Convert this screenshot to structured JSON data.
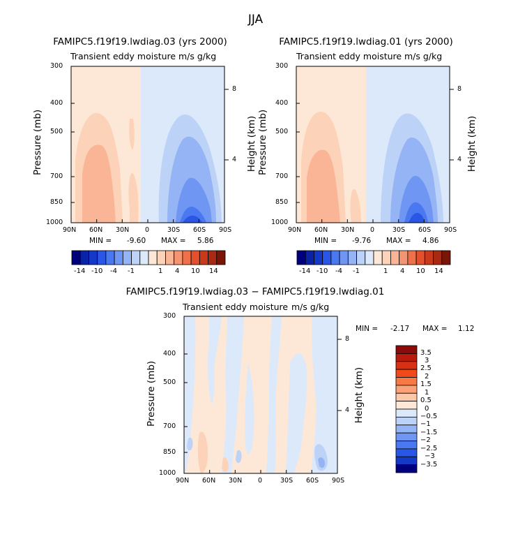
{
  "figure": {
    "title": "JJA"
  },
  "chart_data": [
    {
      "type": "heatmap",
      "title": "FAMIPC5.f19f19.lwdiag.03 (yrs 2000)",
      "subtitle": "Transient eddy moisture",
      "units": "m/s g/kg",
      "ylabel": "Pressure (mb)",
      "y2label": "Height (km)",
      "xticks": [
        "90N",
        "60N",
        "30N",
        "0",
        "30S",
        "60S",
        "90S"
      ],
      "yticks": [
        "300",
        "400",
        "500",
        "700",
        "850",
        "1000"
      ],
      "y2ticks": [
        "8",
        "4"
      ],
      "xlim": [
        90,
        -90
      ],
      "ylim": [
        1000,
        300
      ],
      "min_label": "MIN =",
      "min_value": "-9.60",
      "max_label": "MAX =",
      "max_value": "5.86",
      "colorbar": {
        "orientation": "horizontal",
        "labels": [
          "-14",
          "-10",
          "-4",
          "-1",
          "1",
          "4",
          "10",
          "14"
        ],
        "colors": [
          "#00007f",
          "#0a23a6",
          "#1439c8",
          "#2a56e6",
          "#4a78f0",
          "#6e96f2",
          "#95b4f5",
          "#bcd2f7",
          "#dce9fa",
          "#fde8d8",
          "#fcd2b8",
          "#f9b596",
          "#f59470",
          "#ef7049",
          "#e3502d",
          "#c9391c",
          "#a82a12",
          "#7a1608"
        ]
      }
    },
    {
      "type": "heatmap",
      "title": "FAMIPC5.f19f19.lwdiag.01 (yrs 2000)",
      "subtitle": "Transient eddy moisture",
      "units": "m/s g/kg",
      "ylabel": "Pressure (mb)",
      "y2label": "Height (km)",
      "xticks": [
        "90N",
        "60N",
        "30N",
        "0",
        "30S",
        "60S",
        "90S"
      ],
      "yticks": [
        "300",
        "400",
        "500",
        "700",
        "850",
        "1000"
      ],
      "y2ticks": [
        "8",
        "4"
      ],
      "xlim": [
        90,
        -90
      ],
      "ylim": [
        1000,
        300
      ],
      "min_label": "MIN =",
      "min_value": "-9.76",
      "max_label": "MAX =",
      "max_value": "4.86",
      "colorbar": {
        "orientation": "horizontal",
        "labels": [
          "-14",
          "-10",
          "-4",
          "-1",
          "1",
          "4",
          "10",
          "14"
        ],
        "colors": [
          "#00007f",
          "#0a23a6",
          "#1439c8",
          "#2a56e6",
          "#4a78f0",
          "#6e96f2",
          "#95b4f5",
          "#bcd2f7",
          "#dce9fa",
          "#fde8d8",
          "#fcd2b8",
          "#f9b596",
          "#f59470",
          "#ef7049",
          "#e3502d",
          "#c9391c",
          "#a82a12",
          "#7a1608"
        ]
      }
    },
    {
      "type": "heatmap",
      "title": "FAMIPC5.f19f19.lwdiag.03 − FAMIPC5.f19f19.lwdiag.01",
      "subtitle": "Transient eddy moisture",
      "units": "m/s g/kg",
      "ylabel": "Pressure (mb)",
      "y2label": "Height (km)",
      "xticks": [
        "90N",
        "60N",
        "30N",
        "0",
        "30S",
        "60S",
        "90S"
      ],
      "yticks": [
        "300",
        "400",
        "500",
        "700",
        "850",
        "1000"
      ],
      "y2ticks": [
        "8",
        "4"
      ],
      "xlim": [
        90,
        -90
      ],
      "ylim": [
        1000,
        300
      ],
      "min_label": "MIN =",
      "min_value": "-2.17",
      "max_label": "MAX =",
      "max_value": "1.12",
      "colorbar": {
        "orientation": "vertical",
        "labels": [
          "3.5",
          "3",
          "2.5",
          "2",
          "1.5",
          "1",
          "0.5",
          "0",
          "−0.5",
          "−1",
          "−1.5",
          "−2",
          "−2.5",
          "−3",
          "−3.5"
        ],
        "colors": [
          "#8b0a0a",
          "#b81a0d",
          "#d92f12",
          "#f04a1c",
          "#f57a45",
          "#f9a27a",
          "#fcc8aa",
          "#fde8d8",
          "#dce9fa",
          "#bcd2f7",
          "#95b4f5",
          "#6e96f2",
          "#4a78f0",
          "#2a56e6",
          "#1439c8",
          "#00007f"
        ]
      }
    }
  ]
}
